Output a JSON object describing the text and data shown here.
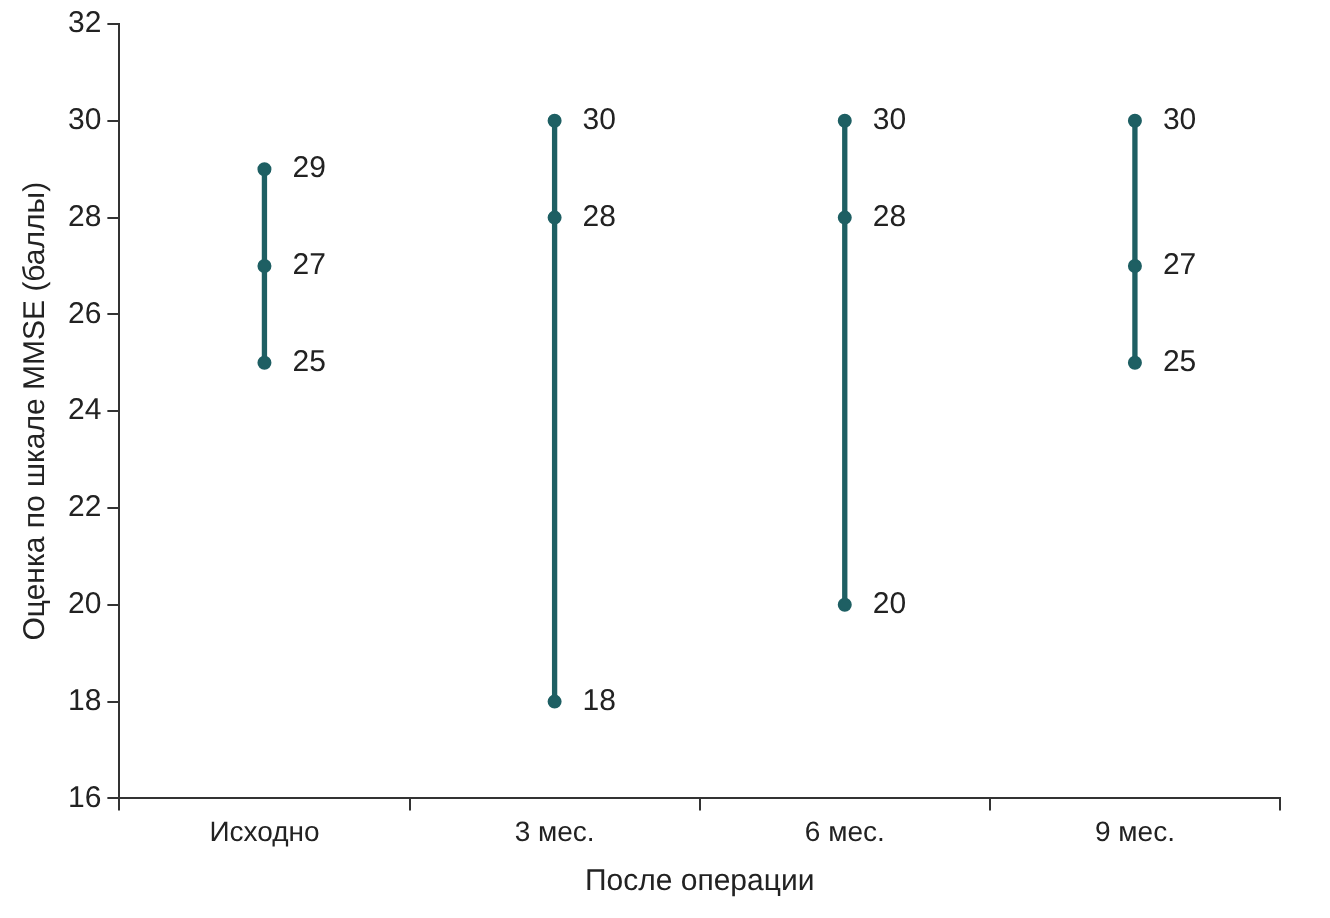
{
  "chart_data": {
    "type": "bar",
    "xlabel": "После операции",
    "ylabel": "Оценка по шкале MMSE (баллы)",
    "categories": [
      "Исходно",
      "3 мес.",
      "6 мес.",
      "9 мес."
    ],
    "series": [
      {
        "color": "#1e5f63",
        "values": [
          4,
          12,
          10,
          5
        ],
        "base": [
          25,
          18,
          20,
          25
        ]
      },
      {
        "type": "scatter",
        "color": "#1e5f63",
        "values": [
          29,
          30,
          30,
          30
        ],
        "value_labels": [
          "29",
          "30",
          "30",
          "30"
        ]
      },
      {
        "type": "scatter",
        "color": "#1e5f63",
        "values": [
          27,
          28,
          28,
          27
        ],
        "value_labels": [
          "27",
          "28",
          "28",
          "27"
        ]
      },
      {
        "type": "scatter",
        "color": "#1e5f63",
        "values": [
          25,
          18,
          20,
          25
        ],
        "value_labels": [
          "25",
          "18",
          "20",
          "25"
        ]
      }
    ],
    "ylim": [
      16,
      32
    ],
    "yticks": [
      16,
      18,
      20,
      22,
      24,
      26,
      28,
      30,
      32
    ],
    "grid": false,
    "legend": false,
    "marker": "circle"
  }
}
